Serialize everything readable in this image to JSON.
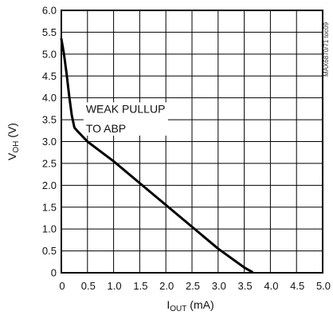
{
  "chart_data": {
    "type": "line",
    "xlabel": {
      "main": "I",
      "sub": "OUT",
      "rest": " (mA)"
    },
    "ylabel": {
      "main": "V",
      "sub": "OH",
      "rest": " (V)"
    },
    "xlim": [
      0,
      5.0
    ],
    "ylim": [
      0,
      6.0
    ],
    "x_ticks": [
      "0",
      "0.5",
      "1.0",
      "1.5",
      "2.0",
      "2.5",
      "3.0",
      "3.5",
      "4.0",
      "4.5",
      "5.0"
    ],
    "y_ticks": [
      "0",
      "0.5",
      "1.0",
      "1.5",
      "2.0",
      "2.5",
      "3.0",
      "3.5",
      "4.0",
      "4.5",
      "5.0",
      "5.5",
      "6.0"
    ],
    "grid": true,
    "annotation": {
      "line1": "WEAK PULLUP",
      "line2": "TO ABP"
    },
    "side_label": "MAX6870/71 toc09",
    "series": [
      {
        "x": [
          0.0,
          0.05,
          0.1,
          0.15,
          0.2,
          0.25,
          0.3,
          0.5,
          1.0,
          1.5,
          2.0,
          2.5,
          3.0,
          3.5,
          3.65
        ],
        "y": [
          5.35,
          5.0,
          4.55,
          4.05,
          3.6,
          3.32,
          3.25,
          3.0,
          2.55,
          2.05,
          1.55,
          1.05,
          0.55,
          0.12,
          0.02
        ]
      }
    ]
  }
}
